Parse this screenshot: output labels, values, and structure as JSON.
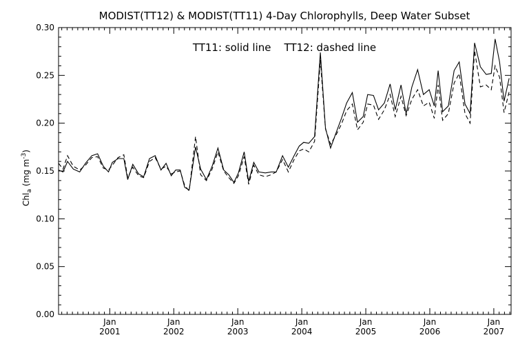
{
  "chart_data": {
    "type": "line",
    "title": "MODIST(TT12) & MODIST(TT11) 4-Day Chlorophylls, Deep Water Subset",
    "annotation": "TT11: solid line    TT12: dashed line",
    "ylabel": "Chl",
    "ylabel_sub": "a",
    "ylabel_unit": "(mg m",
    "ylabel_sup": "-3",
    "ylabel_end": ")",
    "ylim": [
      0.0,
      0.3
    ],
    "yticks": [
      "0.00",
      "0.05",
      "0.10",
      "0.15",
      "0.20",
      "0.25",
      "0.30"
    ],
    "xlim": [
      2000.2,
      2007.27
    ],
    "xticks": [
      {
        "month": "Jan",
        "year": "2001"
      },
      {
        "month": "Jan",
        "year": "2002"
      },
      {
        "month": "Jan",
        "year": "2003"
      },
      {
        "month": "Jan",
        "year": "2004"
      },
      {
        "month": "Jan",
        "year": "2005"
      },
      {
        "month": "Jan",
        "year": "2006"
      },
      {
        "month": "Jan",
        "year": "2007"
      }
    ],
    "grid": false,
    "series": [
      {
        "name": "TT11",
        "style": "solid",
        "points": [
          [
            2000.2,
            0.151
          ],
          [
            2000.27,
            0.149
          ],
          [
            2000.34,
            0.16
          ],
          [
            2000.43,
            0.152
          ],
          [
            2000.53,
            0.149
          ],
          [
            2000.62,
            0.158
          ],
          [
            2000.72,
            0.166
          ],
          [
            2000.81,
            0.168
          ],
          [
            2000.9,
            0.155
          ],
          [
            2000.98,
            0.149
          ],
          [
            2001.04,
            0.159
          ],
          [
            2001.13,
            0.163
          ],
          [
            2001.22,
            0.163
          ],
          [
            2001.28,
            0.141
          ],
          [
            2001.36,
            0.157
          ],
          [
            2001.45,
            0.147
          ],
          [
            2001.53,
            0.144
          ],
          [
            2001.62,
            0.163
          ],
          [
            2001.71,
            0.166
          ],
          [
            2001.8,
            0.151
          ],
          [
            2001.88,
            0.158
          ],
          [
            2001.96,
            0.145
          ],
          [
            2002.03,
            0.151
          ],
          [
            2002.1,
            0.151
          ],
          [
            2002.17,
            0.133
          ],
          [
            2002.24,
            0.13
          ],
          [
            2002.34,
            0.175
          ],
          [
            2002.42,
            0.152
          ],
          [
            2002.51,
            0.141
          ],
          [
            2002.6,
            0.155
          ],
          [
            2002.69,
            0.174
          ],
          [
            2002.78,
            0.151
          ],
          [
            2002.86,
            0.146
          ],
          [
            2002.94,
            0.138
          ],
          [
            2003.01,
            0.148
          ],
          [
            2003.1,
            0.17
          ],
          [
            2003.17,
            0.139
          ],
          [
            2003.25,
            0.159
          ],
          [
            2003.33,
            0.149
          ],
          [
            2003.43,
            0.148
          ],
          [
            2003.52,
            0.149
          ],
          [
            2003.6,
            0.149
          ],
          [
            2003.7,
            0.166
          ],
          [
            2003.79,
            0.154
          ],
          [
            2003.88,
            0.166
          ],
          [
            2003.96,
            0.176
          ],
          [
            2004.03,
            0.18
          ],
          [
            2004.11,
            0.179
          ],
          [
            2004.2,
            0.186
          ],
          [
            2004.29,
            0.274
          ],
          [
            2004.37,
            0.195
          ],
          [
            2004.45,
            0.174
          ],
          [
            2004.53,
            0.189
          ],
          [
            2004.62,
            0.205
          ],
          [
            2004.7,
            0.221
          ],
          [
            2004.79,
            0.232
          ],
          [
            2004.87,
            0.201
          ],
          [
            2004.96,
            0.207
          ],
          [
            2005.03,
            0.23
          ],
          [
            2005.12,
            0.229
          ],
          [
            2005.2,
            0.214
          ],
          [
            2005.29,
            0.221
          ],
          [
            2005.38,
            0.241
          ],
          [
            2005.46,
            0.214
          ],
          [
            2005.55,
            0.24
          ],
          [
            2005.63,
            0.21
          ],
          [
            2005.72,
            0.238
          ],
          [
            2005.81,
            0.256
          ],
          [
            2005.9,
            0.23
          ],
          [
            2005.99,
            0.235
          ],
          [
            2006.07,
            0.218
          ],
          [
            2006.13,
            0.255
          ],
          [
            2006.2,
            0.212
          ],
          [
            2006.29,
            0.218
          ],
          [
            2006.38,
            0.255
          ],
          [
            2006.46,
            0.264
          ],
          [
            2006.55,
            0.22
          ],
          [
            2006.63,
            0.21
          ],
          [
            2006.7,
            0.284
          ],
          [
            2006.79,
            0.259
          ],
          [
            2006.88,
            0.251
          ],
          [
            2006.96,
            0.252
          ],
          [
            2007.02,
            0.288
          ],
          [
            2007.09,
            0.264
          ],
          [
            2007.16,
            0.223
          ],
          [
            2007.24,
            0.247
          ]
        ]
      },
      {
        "name": "TT12",
        "style": "dashed",
        "points": [
          [
            2000.2,
            0.158
          ],
          [
            2000.27,
            0.152
          ],
          [
            2000.34,
            0.166
          ],
          [
            2000.43,
            0.155
          ],
          [
            2000.53,
            0.151
          ],
          [
            2000.62,
            0.156
          ],
          [
            2000.72,
            0.164
          ],
          [
            2000.81,
            0.165
          ],
          [
            2000.9,
            0.153
          ],
          [
            2000.98,
            0.151
          ],
          [
            2001.04,
            0.156
          ],
          [
            2001.13,
            0.164
          ],
          [
            2001.22,
            0.167
          ],
          [
            2001.28,
            0.143
          ],
          [
            2001.36,
            0.154
          ],
          [
            2001.45,
            0.145
          ],
          [
            2001.53,
            0.143
          ],
          [
            2001.62,
            0.16
          ],
          [
            2001.71,
            0.164
          ],
          [
            2001.8,
            0.152
          ],
          [
            2001.88,
            0.155
          ],
          [
            2001.96,
            0.147
          ],
          [
            2002.03,
            0.149
          ],
          [
            2002.1,
            0.15
          ],
          [
            2002.17,
            0.135
          ],
          [
            2002.24,
            0.129
          ],
          [
            2002.34,
            0.186
          ],
          [
            2002.42,
            0.146
          ],
          [
            2002.51,
            0.14
          ],
          [
            2002.6,
            0.152
          ],
          [
            2002.69,
            0.17
          ],
          [
            2002.78,
            0.15
          ],
          [
            2002.86,
            0.143
          ],
          [
            2002.94,
            0.137
          ],
          [
            2003.01,
            0.145
          ],
          [
            2003.1,
            0.165
          ],
          [
            2003.17,
            0.136
          ],
          [
            2003.25,
            0.156
          ],
          [
            2003.33,
            0.146
          ],
          [
            2003.43,
            0.144
          ],
          [
            2003.52,
            0.146
          ],
          [
            2003.6,
            0.149
          ],
          [
            2003.7,
            0.162
          ],
          [
            2003.79,
            0.149
          ],
          [
            2003.88,
            0.162
          ],
          [
            2003.96,
            0.171
          ],
          [
            2004.03,
            0.173
          ],
          [
            2004.11,
            0.17
          ],
          [
            2004.2,
            0.181
          ],
          [
            2004.29,
            0.266
          ],
          [
            2004.37,
            0.194
          ],
          [
            2004.45,
            0.178
          ],
          [
            2004.53,
            0.187
          ],
          [
            2004.62,
            0.199
          ],
          [
            2004.7,
            0.213
          ],
          [
            2004.79,
            0.22
          ],
          [
            2004.87,
            0.193
          ],
          [
            2004.96,
            0.201
          ],
          [
            2005.03,
            0.22
          ],
          [
            2005.12,
            0.219
          ],
          [
            2005.2,
            0.204
          ],
          [
            2005.29,
            0.214
          ],
          [
            2005.38,
            0.23
          ],
          [
            2005.46,
            0.207
          ],
          [
            2005.55,
            0.228
          ],
          [
            2005.63,
            0.208
          ],
          [
            2005.72,
            0.225
          ],
          [
            2005.81,
            0.235
          ],
          [
            2005.9,
            0.218
          ],
          [
            2005.99,
            0.222
          ],
          [
            2006.07,
            0.205
          ],
          [
            2006.13,
            0.24
          ],
          [
            2006.2,
            0.203
          ],
          [
            2006.29,
            0.21
          ],
          [
            2006.38,
            0.242
          ],
          [
            2006.46,
            0.252
          ],
          [
            2006.55,
            0.21
          ],
          [
            2006.63,
            0.2
          ],
          [
            2006.7,
            0.276
          ],
          [
            2006.79,
            0.238
          ],
          [
            2006.88,
            0.24
          ],
          [
            2006.96,
            0.235
          ],
          [
            2007.02,
            0.26
          ],
          [
            2007.09,
            0.248
          ],
          [
            2007.16,
            0.211
          ],
          [
            2007.24,
            0.233
          ]
        ]
      }
    ]
  }
}
